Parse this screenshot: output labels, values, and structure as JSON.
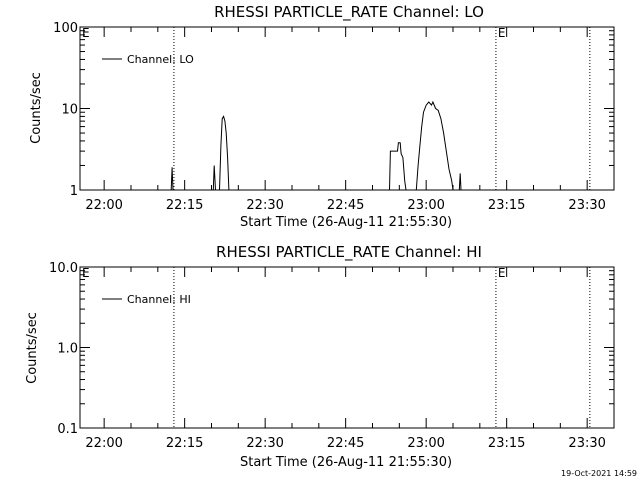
{
  "footer": {
    "timestamp": "19-Oct-2021 14:59"
  },
  "chart_data": [
    {
      "type": "line",
      "title": "RHESSI PARTICLE_RATE Channel: LO",
      "xlabel": "Start Time (26-Aug-11 21:55:30)",
      "ylabel": "Counts/sec",
      "y_scale": "log",
      "ylim": [
        1,
        100
      ],
      "y_ticks": [
        "1",
        "10",
        "100"
      ],
      "xlim": [
        "21:55:30",
        "23:35:00"
      ],
      "x_ticks": [
        "22:00",
        "22:15",
        "22:30",
        "22:45",
        "23:00",
        "23:15",
        "23:30"
      ],
      "legend": {
        "placement": "top-left",
        "entries": [
          "Channel: LO"
        ]
      },
      "grid": false,
      "markers": [
        {
          "time": "22:13:00",
          "label": ""
        },
        {
          "time": "23:13:00",
          "label": "E"
        },
        {
          "time": "23:30:30",
          "label": ""
        }
      ],
      "corner_label": "E",
      "series": [
        {
          "name": "Channel: LO",
          "points": [
            [
              "22:12:30",
              1.0
            ],
            [
              "22:12:40",
              1.9
            ],
            [
              "22:12:50",
              1.0
            ],
            [
              "22:20:20",
              1.0
            ],
            [
              "22:20:30",
              2.0
            ],
            [
              "22:20:45",
              1.0
            ],
            [
              "22:21:30",
              1.0
            ],
            [
              "22:21:45",
              3.5
            ],
            [
              "22:22:00",
              7.5
            ],
            [
              "22:22:15",
              8.0
            ],
            [
              "22:22:30",
              7.0
            ],
            [
              "22:22:45",
              5.0
            ],
            [
              "22:23:00",
              2.5
            ],
            [
              "22:23:15",
              1.0
            ],
            [
              "22:53:10",
              1.0
            ],
            [
              "22:53:20",
              3.0
            ],
            [
              "22:54:40",
              3.0
            ],
            [
              "22:54:50",
              3.8
            ],
            [
              "22:55:10",
              3.8
            ],
            [
              "22:55:20",
              2.8
            ],
            [
              "22:55:40",
              2.5
            ],
            [
              "22:56:00",
              1.3
            ],
            [
              "22:56:15",
              1.0
            ],
            [
              "22:58:10",
              1.0
            ],
            [
              "22:58:30",
              2.0
            ],
            [
              "22:58:50",
              3.5
            ],
            [
              "22:59:10",
              6.0
            ],
            [
              "22:59:30",
              9.0
            ],
            [
              "23:00:00",
              11.0
            ],
            [
              "23:00:30",
              12.0
            ],
            [
              "23:01:00",
              11.0
            ],
            [
              "23:01:15",
              12.0
            ],
            [
              "23:01:45",
              10.0
            ],
            [
              "23:02:15",
              9.5
            ],
            [
              "23:02:45",
              7.5
            ],
            [
              "23:03:15",
              5.0
            ],
            [
              "23:03:45",
              3.0
            ],
            [
              "23:04:15",
              1.8
            ],
            [
              "23:04:45",
              1.3
            ],
            [
              "23:05:00",
              1.0
            ],
            [
              "23:06:10",
              1.0
            ],
            [
              "23:06:20",
              1.6
            ],
            [
              "23:06:30",
              1.0
            ]
          ]
        }
      ]
    },
    {
      "type": "line",
      "title": "RHESSI PARTICLE_RATE Channel: HI",
      "xlabel": "Start Time (26-Aug-11 21:55:30)",
      "ylabel": "Counts/sec",
      "y_scale": "log",
      "ylim": [
        0.1,
        10
      ],
      "y_ticks": [
        "0.1",
        "1.0",
        "10.0"
      ],
      "xlim": [
        "21:55:30",
        "23:35:00"
      ],
      "x_ticks": [
        "22:00",
        "22:15",
        "22:30",
        "22:45",
        "23:00",
        "23:15",
        "23:30"
      ],
      "legend": {
        "placement": "top-left",
        "entries": [
          "Channel: HI"
        ]
      },
      "grid": false,
      "markers": [
        {
          "time": "22:13:00",
          "label": ""
        },
        {
          "time": "23:13:00",
          "label": "E"
        },
        {
          "time": "23:30:30",
          "label": ""
        }
      ],
      "corner_label": "E",
      "series": [
        {
          "name": "Channel: HI",
          "points": []
        }
      ]
    }
  ]
}
